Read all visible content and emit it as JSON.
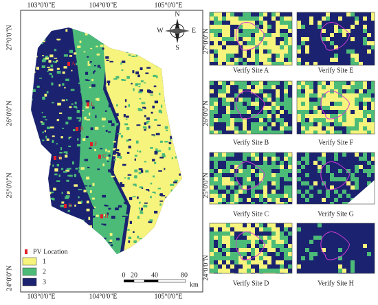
{
  "map": {
    "longitude_labels": [
      "103°0'0\"E",
      "104°0'0\"E",
      "105°0'0\"E"
    ],
    "latitude_labels": [
      "27°0'0\"N",
      "26°0'0\"N",
      "25°0'0\"N",
      "24°0'0\"N"
    ],
    "compass": {
      "north": "N",
      "east": "E",
      "south": "S",
      "west": "W"
    },
    "legend": {
      "title": "PV Location",
      "classes": [
        {
          "label": "1",
          "color": "#f6f47c"
        },
        {
          "label": "2",
          "color": "#4cbb78"
        },
        {
          "label": "3",
          "color": "#1b2370"
        }
      ]
    },
    "scale_bar": {
      "ticks": [
        "0",
        "20",
        "40",
        "80"
      ],
      "unit": "km"
    },
    "sites": [
      "A",
      "E",
      "B",
      "F",
      "C",
      "G",
      "D",
      "H"
    ]
  },
  "panels": {
    "titles": [
      "Verify Site A",
      "Verify Site E",
      "Verify Site B",
      "Verify Site F",
      "Verify Site C",
      "Verify Site G",
      "Verify Site D",
      "Verify Site H"
    ],
    "latitude_labels": [
      "27°0'0\"N",
      "26°0'0\"N",
      "25°0'0\"N",
      "24°0'0\"N"
    ]
  }
}
